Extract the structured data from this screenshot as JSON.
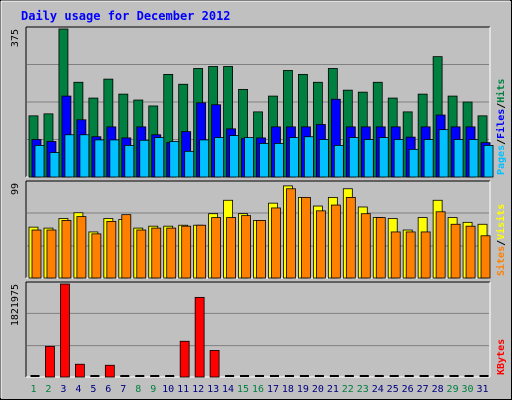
{
  "title": "Daily usage for December 2012",
  "colors": {
    "background": "#c0c0c0",
    "title": "#0000ff",
    "hits": "#008040",
    "files": "#0000ff",
    "pages": "#00c0ff",
    "visits": "#ffff00",
    "sites": "#ff8000",
    "kbytes": "#ff0000",
    "weekday_label": "#000080",
    "weekend_label": "#008040"
  },
  "chart_data": [
    {
      "type": "bar",
      "panel": "hits-files-pages",
      "ymax_label": "375",
      "ylim": [
        0,
        375
      ],
      "legend": [
        "Pages",
        "/",
        "Files",
        "/",
        "Hits"
      ],
      "categories": [
        "1",
        "2",
        "3",
        "4",
        "5",
        "6",
        "7",
        "8",
        "9",
        "10",
        "11",
        "12",
        "13",
        "14",
        "15",
        "16",
        "17",
        "18",
        "19",
        "20",
        "21",
        "22",
        "23",
        "24",
        "25",
        "26",
        "27",
        "28",
        "29",
        "30",
        "31"
      ],
      "series": [
        {
          "name": "Hits",
          "values": [
            155,
            160,
            375,
            240,
            200,
            248,
            210,
            195,
            180,
            260,
            235,
            275,
            280,
            280,
            222,
            165,
            205,
            270,
            260,
            240,
            275,
            220,
            215,
            240,
            200,
            165,
            210,
            305,
            205,
            190,
            155
          ]
        },
        {
          "name": "Files",
          "values": [
            95,
            90,
            205,
            145,
            102,
            127,
            99,
            127,
            107,
            87,
            115,
            188,
            183,
            122,
            98,
            99,
            127,
            127,
            127,
            133,
            197,
            127,
            127,
            127,
            127,
            101,
            127,
            157,
            127,
            127,
            87
          ]
        },
        {
          "name": "Pages",
          "values": [
            80,
            62,
            107,
            107,
            94,
            94,
            80,
            93,
            100,
            90,
            65,
            94,
            100,
            105,
            100,
            85,
            85,
            100,
            102,
            95,
            80,
            100,
            95,
            100,
            95,
            70,
            95,
            120,
            95,
            95,
            80
          ]
        }
      ]
    },
    {
      "type": "bar",
      "panel": "visits-sites",
      "ymax_label": "99",
      "ylim": [
        0,
        99
      ],
      "legend": [
        "Sites",
        "/",
        "Visits"
      ],
      "categories": [
        "1",
        "2",
        "3",
        "4",
        "5",
        "6",
        "7",
        "8",
        "9",
        "10",
        "11",
        "12",
        "13",
        "14",
        "15",
        "16",
        "17",
        "18",
        "19",
        "20",
        "21",
        "22",
        "23",
        "24",
        "25",
        "26",
        "27",
        "28",
        "29",
        "30",
        "31"
      ],
      "series": [
        {
          "name": "Visits",
          "values": [
            53,
            52,
            62,
            68,
            48,
            62,
            61,
            52,
            54,
            54,
            55,
            55,
            67,
            81,
            67,
            60,
            78,
            96,
            84,
            75,
            84,
            93,
            74,
            63,
            62,
            50,
            63,
            81,
            63,
            58,
            56
          ]
        },
        {
          "name": "Sites",
          "values": [
            50,
            50,
            60,
            64,
            46,
            59,
            66,
            50,
            52,
            52,
            54,
            55,
            63,
            63,
            65,
            60,
            73,
            93,
            84,
            70,
            76,
            84,
            67,
            63,
            48,
            48,
            48,
            69,
            56,
            54,
            44
          ]
        }
      ]
    },
    {
      "type": "bar",
      "panel": "kbytes",
      "ymax_label": "1821975",
      "ylim": [
        0,
        1821975
      ],
      "legend": [
        "KBytes"
      ],
      "categories": [
        "1",
        "2",
        "3",
        "4",
        "5",
        "6",
        "7",
        "8",
        "9",
        "10",
        "11",
        "12",
        "13",
        "14",
        "15",
        "16",
        "17",
        "18",
        "19",
        "20",
        "21",
        "22",
        "23",
        "24",
        "25",
        "26",
        "27",
        "28",
        "29",
        "30",
        "31"
      ],
      "series": [
        {
          "name": "KBytes",
          "values": [
            0,
            600000,
            1821975,
            250000,
            0,
            230000,
            0,
            0,
            0,
            0,
            700000,
            1560000,
            520000,
            0,
            0,
            0,
            0,
            0,
            0,
            0,
            0,
            0,
            0,
            0,
            0,
            0,
            0,
            0,
            0,
            0,
            0
          ]
        }
      ],
      "x_label_weekend_days": [
        "1",
        "2",
        "8",
        "9",
        "15",
        "16",
        "22",
        "23",
        "29",
        "30"
      ]
    }
  ]
}
